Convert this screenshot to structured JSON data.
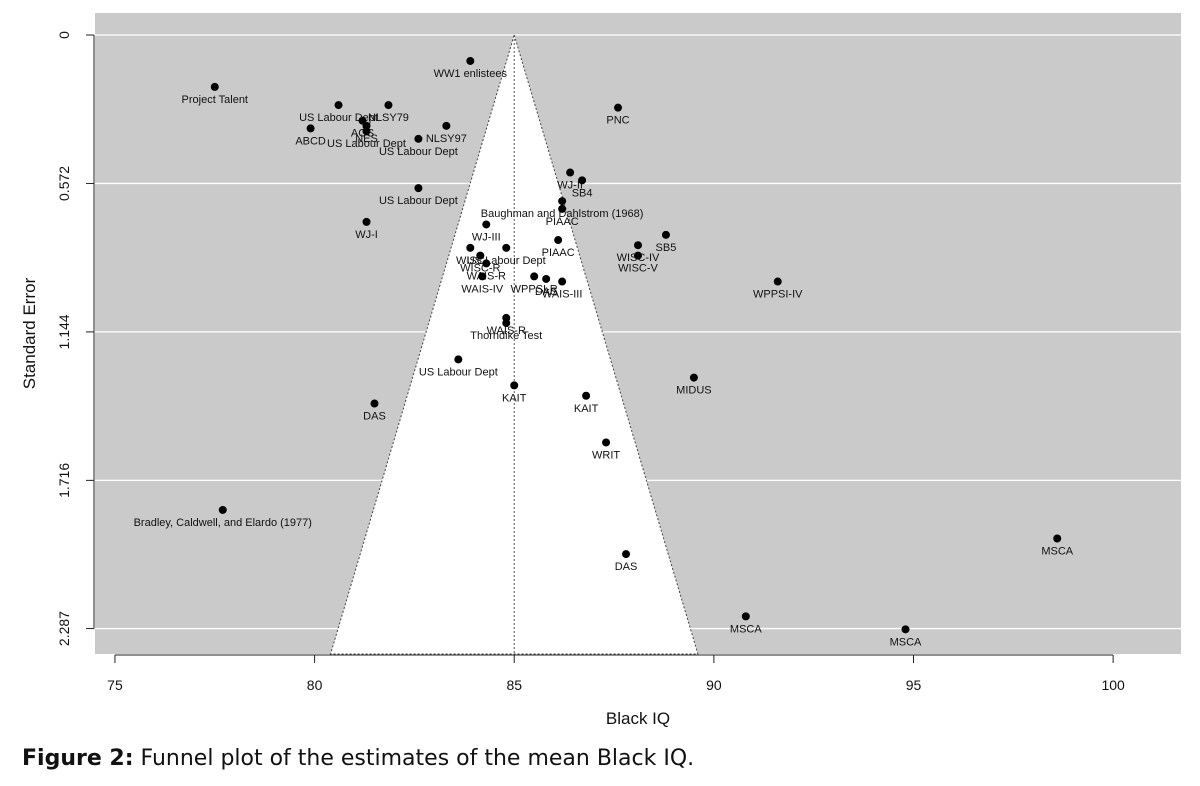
{
  "caption": {
    "label": "Figure 2:",
    "text": "Funnel plot of the estimates of the mean Black IQ."
  },
  "chart_data": {
    "type": "scatter",
    "subtype": "funnel",
    "title": "",
    "xlabel": "Black IQ",
    "ylabel": "Standard Error",
    "xlim": [
      74.5,
      101.7
    ],
    "ylim": [
      0,
      2.385
    ],
    "y_reversed": true,
    "x_ticks": [
      75,
      80,
      85,
      90,
      95,
      100
    ],
    "y_ticks": [
      0,
      0.572,
      1.144,
      1.716,
      2.287
    ],
    "y_tick_labels": [
      "0",
      "0.572",
      "1.144",
      "1.716",
      "2.287"
    ],
    "grid": true,
    "funnel": {
      "center": 85,
      "apex_se": 0,
      "base_se": 2.385,
      "base_xmin": 80.4,
      "base_xmax": 89.6
    },
    "colors": {
      "background": "#cacaca",
      "funnel": "#ffffff",
      "grid": "#ffffff",
      "points": "#000000"
    },
    "points": [
      {
        "x": 77.5,
        "y": 0.2,
        "label": "Project Talent"
      },
      {
        "x": 83.9,
        "y": 0.1,
        "label": "WW1 enlistees"
      },
      {
        "x": 80.6,
        "y": 0.27,
        "label": "US Labour Dept"
      },
      {
        "x": 81.85,
        "y": 0.27,
        "label": "NLSY79"
      },
      {
        "x": 81.2,
        "y": 0.33,
        "label": "AGS"
      },
      {
        "x": 81.3,
        "y": 0.35,
        "label": "NES"
      },
      {
        "x": 79.9,
        "y": 0.36,
        "label": "ABCD"
      },
      {
        "x": 81.3,
        "y": 0.37,
        "label": "US Labour Dept"
      },
      {
        "x": 83.3,
        "y": 0.35,
        "label": "NLSY97"
      },
      {
        "x": 82.6,
        "y": 0.4,
        "label": "US Labour Dept"
      },
      {
        "x": 87.6,
        "y": 0.28,
        "label": "PNC"
      },
      {
        "x": 82.6,
        "y": 0.59,
        "label": "US Labour Dept"
      },
      {
        "x": 81.3,
        "y": 0.72,
        "label": "WJ-I"
      },
      {
        "x": 86.4,
        "y": 0.53,
        "label": "WJ-II"
      },
      {
        "x": 86.7,
        "y": 0.56,
        "label": "SB4"
      },
      {
        "x": 86.2,
        "y": 0.64,
        "label": "Baughman and Dahlstrom (1968)"
      },
      {
        "x": 86.2,
        "y": 0.67,
        "label": "PIAAC"
      },
      {
        "x": 84.3,
        "y": 0.73,
        "label": "WJ-III"
      },
      {
        "x": 86.1,
        "y": 0.79,
        "label": "PIAAC"
      },
      {
        "x": 88.8,
        "y": 0.77,
        "label": "SB5"
      },
      {
        "x": 88.1,
        "y": 0.81,
        "label": "WISC-IV"
      },
      {
        "x": 88.1,
        "y": 0.85,
        "label": "WISC-V"
      },
      {
        "x": 83.9,
        "y": 0.82,
        "label": "WISC"
      },
      {
        "x": 84.8,
        "y": 0.82,
        "label": "US Labour Dept"
      },
      {
        "x": 84.15,
        "y": 0.85,
        "label": "WISC-R"
      },
      {
        "x": 84.3,
        "y": 0.88,
        "label": "WAIS-R"
      },
      {
        "x": 84.2,
        "y": 0.93,
        "label": "WAIS-IV"
      },
      {
        "x": 85.5,
        "y": 0.93,
        "label": "WPPSI-R"
      },
      {
        "x": 85.8,
        "y": 0.94,
        "label": "DAS"
      },
      {
        "x": 86.2,
        "y": 0.95,
        "label": "WAIS-III"
      },
      {
        "x": 91.6,
        "y": 0.95,
        "label": "WPPSI-IV"
      },
      {
        "x": 84.8,
        "y": 1.09,
        "label": "WAIS-R"
      },
      {
        "x": 84.8,
        "y": 1.11,
        "label": "Thorndike Test"
      },
      {
        "x": 83.6,
        "y": 1.25,
        "label": "US Labour Dept"
      },
      {
        "x": 85.0,
        "y": 1.35,
        "label": "KAIT"
      },
      {
        "x": 81.5,
        "y": 1.42,
        "label": "DAS"
      },
      {
        "x": 86.8,
        "y": 1.39,
        "label": "KAIT"
      },
      {
        "x": 89.5,
        "y": 1.32,
        "label": "MIDUS"
      },
      {
        "x": 87.3,
        "y": 1.57,
        "label": "WRIT"
      },
      {
        "x": 77.7,
        "y": 1.83,
        "label": "Bradley, Caldwell, and Elardo (1977)"
      },
      {
        "x": 87.8,
        "y": 2.0,
        "label": "DAS"
      },
      {
        "x": 98.6,
        "y": 1.94,
        "label": "MSCA"
      },
      {
        "x": 90.8,
        "y": 2.24,
        "label": "MSCA"
      },
      {
        "x": 94.8,
        "y": 2.29,
        "label": "MSCA"
      }
    ]
  }
}
